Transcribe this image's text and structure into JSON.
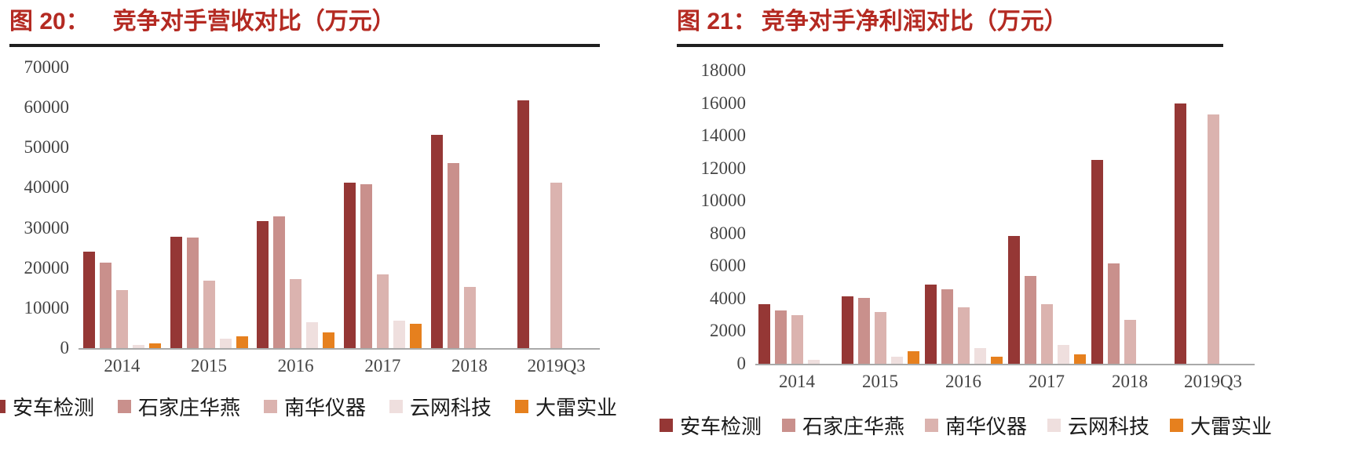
{
  "figures": [
    {
      "label": "图 20：",
      "title": "竞争对手营收对比（万元）",
      "title_color": "#B42A22"
    },
    {
      "label": "图 21：",
      "title": "竞争对手净利润对比（万元）",
      "title_color": "#B42A22"
    }
  ],
  "chart_data": [
    {
      "type": "bar",
      "title": "图 20： 竞争对手营收对比（万元）",
      "categories": [
        "2014",
        "2015",
        "2016",
        "2017",
        "2018",
        "2019Q3"
      ],
      "series": [
        {
          "name": "安车检测",
          "color": "#953735",
          "values": [
            24000,
            27800,
            31600,
            41200,
            53200,
            61800
          ]
        },
        {
          "name": "石家庄华燕",
          "color": "#C9908C",
          "values": [
            21300,
            27600,
            32800,
            40800,
            46200,
            null
          ]
        },
        {
          "name": "南华仪器",
          "color": "#DBB3AF",
          "values": [
            14500,
            16800,
            17300,
            18300,
            15300,
            41300
          ]
        },
        {
          "name": "云网科技",
          "color": "#EFDFDE",
          "values": [
            700,
            2400,
            6500,
            6900,
            null,
            null
          ]
        },
        {
          "name": "大雷实业",
          "color": "#E6801E",
          "values": [
            1100,
            2900,
            4000,
            6000,
            null,
            null
          ]
        }
      ],
      "xlabel": "",
      "ylabel": "",
      "ylim": [
        0,
        70000
      ],
      "ytick_step": 10000,
      "grid": false,
      "legend_position": "bottom"
    },
    {
      "type": "bar",
      "title": "图 21：竞争对手净利润对比（万元）",
      "categories": [
        "2014",
        "2015",
        "2016",
        "2017",
        "2018",
        "2019Q3"
      ],
      "series": [
        {
          "name": "安车检测",
          "color": "#953735",
          "values": [
            3650,
            4150,
            4850,
            7850,
            12500,
            16000
          ]
        },
        {
          "name": "石家庄华燕",
          "color": "#C9908C",
          "values": [
            3250,
            4050,
            4550,
            5400,
            6150,
            null
          ]
        },
        {
          "name": "南华仪器",
          "color": "#DBB3AF",
          "values": [
            2980,
            3200,
            3480,
            3650,
            2700,
            15300
          ]
        },
        {
          "name": "云网科技",
          "color": "#EFDFDE",
          "values": [
            250,
            450,
            980,
            1150,
            null,
            null
          ]
        },
        {
          "name": "大雷实业",
          "color": "#E6801E",
          "values": [
            null,
            780,
            450,
            600,
            null,
            null
          ]
        }
      ],
      "xlabel": "",
      "ylabel": "",
      "ylim": [
        0,
        18000
      ],
      "ytick_step": 2000,
      "grid": false,
      "legend_position": "bottom"
    }
  ]
}
